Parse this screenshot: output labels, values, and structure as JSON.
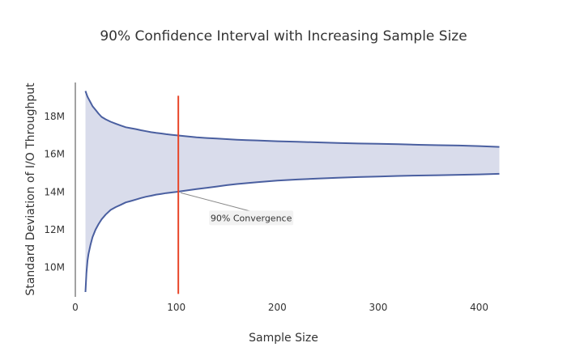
{
  "chart_data": {
    "type": "area",
    "title": "90% Confidence Interval with Increasing Sample Size",
    "xlabel": "Sample Size",
    "ylabel": "Standard Deviation of I/O Throughput",
    "xlim": [
      0,
      430
    ],
    "ylim": [
      8400000,
      19800000
    ],
    "x_ticks": [
      0,
      100,
      200,
      300,
      400
    ],
    "x_tick_labels": [
      "0",
      "100",
      "200",
      "300",
      "400"
    ],
    "y_ticks": [
      10000000,
      12000000,
      14000000,
      16000000,
      18000000
    ],
    "y_tick_labels": [
      "10M",
      "12M",
      "14M",
      "16M",
      "18M"
    ],
    "grid": false,
    "colors": {
      "line": "#4a5fa0",
      "band": "#d9dceb",
      "vline": "#e8472a",
      "annotation": "#888888"
    },
    "series": [
      {
        "x": [
          10,
          11,
          12,
          13,
          15,
          17,
          20,
          23,
          26,
          30,
          35,
          40,
          45,
          50,
          55,
          60,
          65,
          70,
          75,
          80,
          85,
          90,
          95,
          100,
          110,
          120,
          130,
          140,
          150,
          160,
          170,
          180,
          190,
          200,
          220,
          240,
          260,
          280,
          300,
          320,
          340,
          360,
          380,
          400,
          420
        ],
        "values": [
          19350000,
          19200000,
          19050000,
          18950000,
          18750000,
          18550000,
          18350000,
          18150000,
          17980000,
          17850000,
          17720000,
          17620000,
          17520000,
          17430000,
          17380000,
          17330000,
          17270000,
          17220000,
          17170000,
          17130000,
          17100000,
          17060000,
          17030000,
          17000000,
          16950000,
          16900000,
          16860000,
          16830000,
          16800000,
          16770000,
          16750000,
          16730000,
          16710000,
          16690000,
          16660000,
          16630000,
          16600000,
          16570000,
          16550000,
          16530000,
          16500000,
          16480000,
          16460000,
          16430000,
          16390000
        ]
      },
      {
        "x": [
          10,
          11,
          12,
          13,
          15,
          17,
          20,
          23,
          26,
          30,
          35,
          40,
          45,
          50,
          55,
          60,
          65,
          70,
          75,
          80,
          85,
          90,
          95,
          100,
          110,
          120,
          130,
          140,
          150,
          160,
          170,
          180,
          190,
          200,
          220,
          240,
          260,
          280,
          300,
          320,
          340,
          360,
          380,
          400,
          420
        ],
        "values": [
          8700000,
          9700000,
          10350000,
          10700000,
          11200000,
          11600000,
          12000000,
          12300000,
          12550000,
          12800000,
          13050000,
          13200000,
          13320000,
          13450000,
          13520000,
          13600000,
          13680000,
          13750000,
          13800000,
          13860000,
          13900000,
          13940000,
          13970000,
          14000000,
          14080000,
          14150000,
          14220000,
          14290000,
          14360000,
          14420000,
          14470000,
          14520000,
          14560000,
          14600000,
          14660000,
          14710000,
          14750000,
          14790000,
          14820000,
          14850000,
          14870000,
          14890000,
          14910000,
          14930000,
          14960000
        ]
      }
    ],
    "vertical_line": {
      "x": 102,
      "y_range": [
        8600000,
        19100000
      ]
    },
    "annotation": {
      "text": "90% Convergence",
      "x": 102,
      "y": 14000000
    }
  }
}
